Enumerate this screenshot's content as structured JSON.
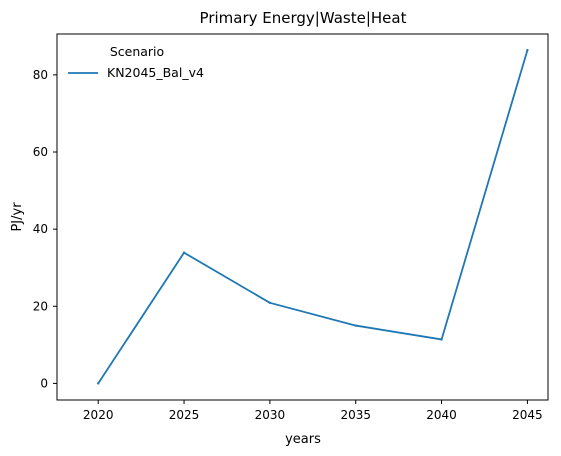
{
  "chart_data": {
    "type": "line",
    "title": "Primary Energy|Waste|Heat",
    "xlabel": "years",
    "ylabel": "PJ/yr",
    "x": [
      2020,
      2025,
      2030,
      2035,
      2040,
      2045
    ],
    "xticks": [
      "2020",
      "2025",
      "2030",
      "2035",
      "2040",
      "2045"
    ],
    "yticks": [
      "0",
      "20",
      "40",
      "60",
      "80"
    ],
    "ylim": [
      -4.3,
      90.6
    ],
    "grid": false,
    "legend": {
      "title": "Scenario",
      "placement": "top-left"
    },
    "series": [
      {
        "name": "KN2045_Bal_v4",
        "color": "#1f77b4",
        "values": [
          0.0,
          33.9,
          20.9,
          15.0,
          11.4,
          86.4
        ]
      }
    ]
  }
}
